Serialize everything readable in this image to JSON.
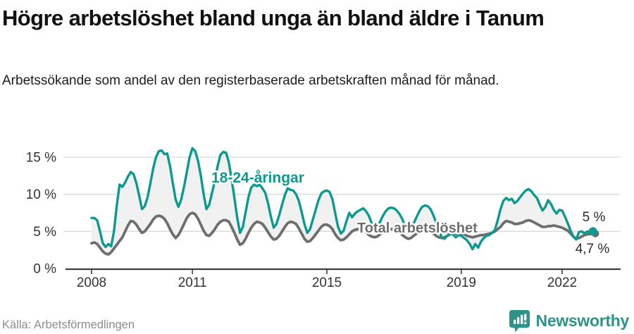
{
  "header": {
    "title": "Högre arbetslöshet bland unga än bland äldre i Tanum",
    "subtitle": "Arbetssökande som andel av den registerbaserade arbetskraften månad för månad."
  },
  "footer": {
    "source": "Källa: Arbetsförmedlingen",
    "brand": "Newsworthy",
    "brand_color": "#2d9287"
  },
  "chart_data": {
    "type": "line",
    "title": "Högre arbetslöshet bland unga än bland äldre i Tanum",
    "x_unit": "month",
    "x_range": [
      "2008-01",
      "2022-12"
    ],
    "x_ticks": [
      {
        "year": 2008,
        "label": "2008"
      },
      {
        "year": 2011,
        "label": "2011"
      },
      {
        "year": 2015,
        "label": "2015"
      },
      {
        "year": 2019,
        "label": "2019"
      },
      {
        "year": 2022,
        "label": "2022"
      }
    ],
    "y_ticks": [
      {
        "value": 0,
        "label": "0 %"
      },
      {
        "value": 5,
        "label": "5 %"
      },
      {
        "value": 10,
        "label": "10 %"
      },
      {
        "value": 15,
        "label": "15 %"
      }
    ],
    "ylim": [
      0,
      17
    ],
    "grid": "horizontal",
    "legend_position": "inline-labels",
    "band_fill_between_series": "#f1f1f1",
    "series": [
      {
        "name": "18-24-åringar",
        "color": "#0b9a8e",
        "end_label": "5 %",
        "end_value": 5.0,
        "values": [
          6.8,
          6.8,
          6.5,
          5.0,
          3.4,
          2.9,
          3.3,
          3.0,
          5.0,
          8.5,
          11.3,
          11.0,
          11.6,
          12.4,
          13.0,
          12.7,
          11.5,
          9.8,
          8.0,
          8.4,
          9.6,
          11.5,
          13.5,
          15.0,
          15.8,
          15.9,
          15.4,
          15.5,
          13.8,
          11.5,
          9.3,
          8.3,
          9.3,
          11.0,
          13.0,
          15.0,
          16.2,
          15.8,
          14.5,
          12.5,
          10.0,
          8.0,
          8.6,
          10.2,
          11.8,
          13.8,
          15.3,
          15.7,
          15.6,
          14.3,
          12.0,
          9.5,
          6.8,
          4.8,
          5.6,
          7.6,
          9.6,
          10.9,
          11.3,
          11.1,
          11.3,
          10.8,
          10.2,
          8.8,
          7.0,
          5.5,
          6.0,
          7.2,
          8.6,
          9.9,
          10.8,
          10.6,
          10.5,
          10.0,
          9.1,
          7.6,
          6.0,
          4.8,
          5.3,
          6.6,
          7.9,
          9.2,
          10.1,
          10.4,
          10.5,
          10.3,
          9.3,
          7.4,
          5.6,
          4.7,
          5.1,
          6.4,
          7.5,
          6.9,
          7.4,
          7.7,
          7.9,
          8.1,
          7.7,
          7.1,
          6.1,
          5.3,
          5.6,
          6.3,
          7.1,
          7.7,
          8.1,
          8.2,
          8.1,
          7.8,
          7.3,
          6.6,
          5.6,
          4.9,
          5.3,
          6.1,
          6.9,
          7.7,
          8.3,
          8.5,
          8.4,
          8.0,
          7.2,
          6.2,
          5.2,
          4.2,
          4.0,
          4.4,
          4.8,
          4.6,
          4.2,
          4.5,
          4.4,
          4.1,
          3.8,
          3.3,
          2.6,
          3.3,
          2.8,
          3.6,
          4.1,
          4.4,
          4.5,
          4.8,
          5.2,
          6.5,
          8.0,
          9.1,
          9.5,
          9.2,
          9.4,
          8.8,
          9.1,
          9.6,
          10.1,
          10.5,
          10.7,
          10.4,
          9.9,
          9.5,
          8.6,
          7.8,
          8.3,
          9.2,
          8.7,
          7.9,
          7.4,
          7.9,
          7.8,
          7.0,
          6.1,
          5.1,
          4.3,
          3.9,
          4.9,
          5.0,
          4.7,
          5.0,
          4.9,
          5.0
        ]
      },
      {
        "name": "Total arbetslöshet",
        "color": "#6e6e6e",
        "end_label": "4,7 %",
        "end_value": 4.7,
        "values": [
          3.4,
          3.5,
          3.3,
          2.8,
          2.3,
          2.0,
          1.9,
          2.2,
          2.7,
          3.2,
          3.7,
          4.2,
          5.0,
          5.8,
          6.4,
          6.3,
          5.9,
          5.3,
          4.8,
          5.0,
          5.5,
          6.0,
          6.6,
          7.0,
          7.1,
          7.0,
          6.7,
          6.1,
          5.3,
          4.6,
          4.1,
          4.5,
          5.2,
          6.0,
          6.8,
          7.3,
          7.5,
          7.3,
          6.7,
          5.9,
          5.1,
          4.5,
          4.4,
          4.8,
          5.3,
          5.9,
          6.3,
          6.5,
          6.5,
          6.3,
          5.6,
          4.8,
          3.9,
          3.2,
          3.4,
          4.0,
          4.8,
          5.5,
          6.0,
          6.3,
          6.2,
          6.0,
          5.5,
          4.9,
          4.3,
          3.9,
          4.0,
          4.4,
          5.0,
          5.6,
          6.1,
          6.3,
          6.2,
          6.0,
          5.4,
          4.7,
          4.0,
          3.6,
          3.7,
          4.1,
          4.6,
          5.1,
          5.6,
          5.9,
          5.9,
          5.7,
          5.3,
          4.6,
          4.1,
          3.8,
          3.9,
          4.2,
          4.6,
          5.0,
          5.2,
          5.3,
          5.3,
          5.2,
          4.9,
          4.5,
          4.3,
          4.2,
          4.3,
          4.6,
          4.9,
          5.2,
          5.3,
          5.3,
          5.3,
          5.2,
          4.9,
          4.5,
          4.2,
          4.0,
          4.1,
          4.4,
          4.7,
          5.0,
          5.1,
          5.1,
          5.1,
          5.0,
          4.7,
          4.4,
          4.2,
          4.1,
          4.2,
          4.4,
          4.6,
          4.7,
          4.7,
          4.7,
          4.7,
          4.6,
          4.4,
          4.3,
          4.2,
          4.3,
          4.4,
          4.5,
          4.5,
          4.6,
          4.7,
          4.8,
          5.0,
          5.3,
          5.6,
          6.1,
          6.4,
          6.3,
          6.2,
          6.0,
          6.0,
          6.1,
          6.2,
          6.4,
          6.5,
          6.4,
          6.2,
          6.0,
          5.8,
          5.6,
          5.6,
          5.7,
          5.7,
          5.8,
          5.7,
          5.6,
          5.5,
          5.3,
          5.1,
          4.7,
          4.3,
          4.0,
          4.1,
          4.3,
          4.5,
          4.6,
          4.65,
          4.7
        ]
      }
    ]
  }
}
